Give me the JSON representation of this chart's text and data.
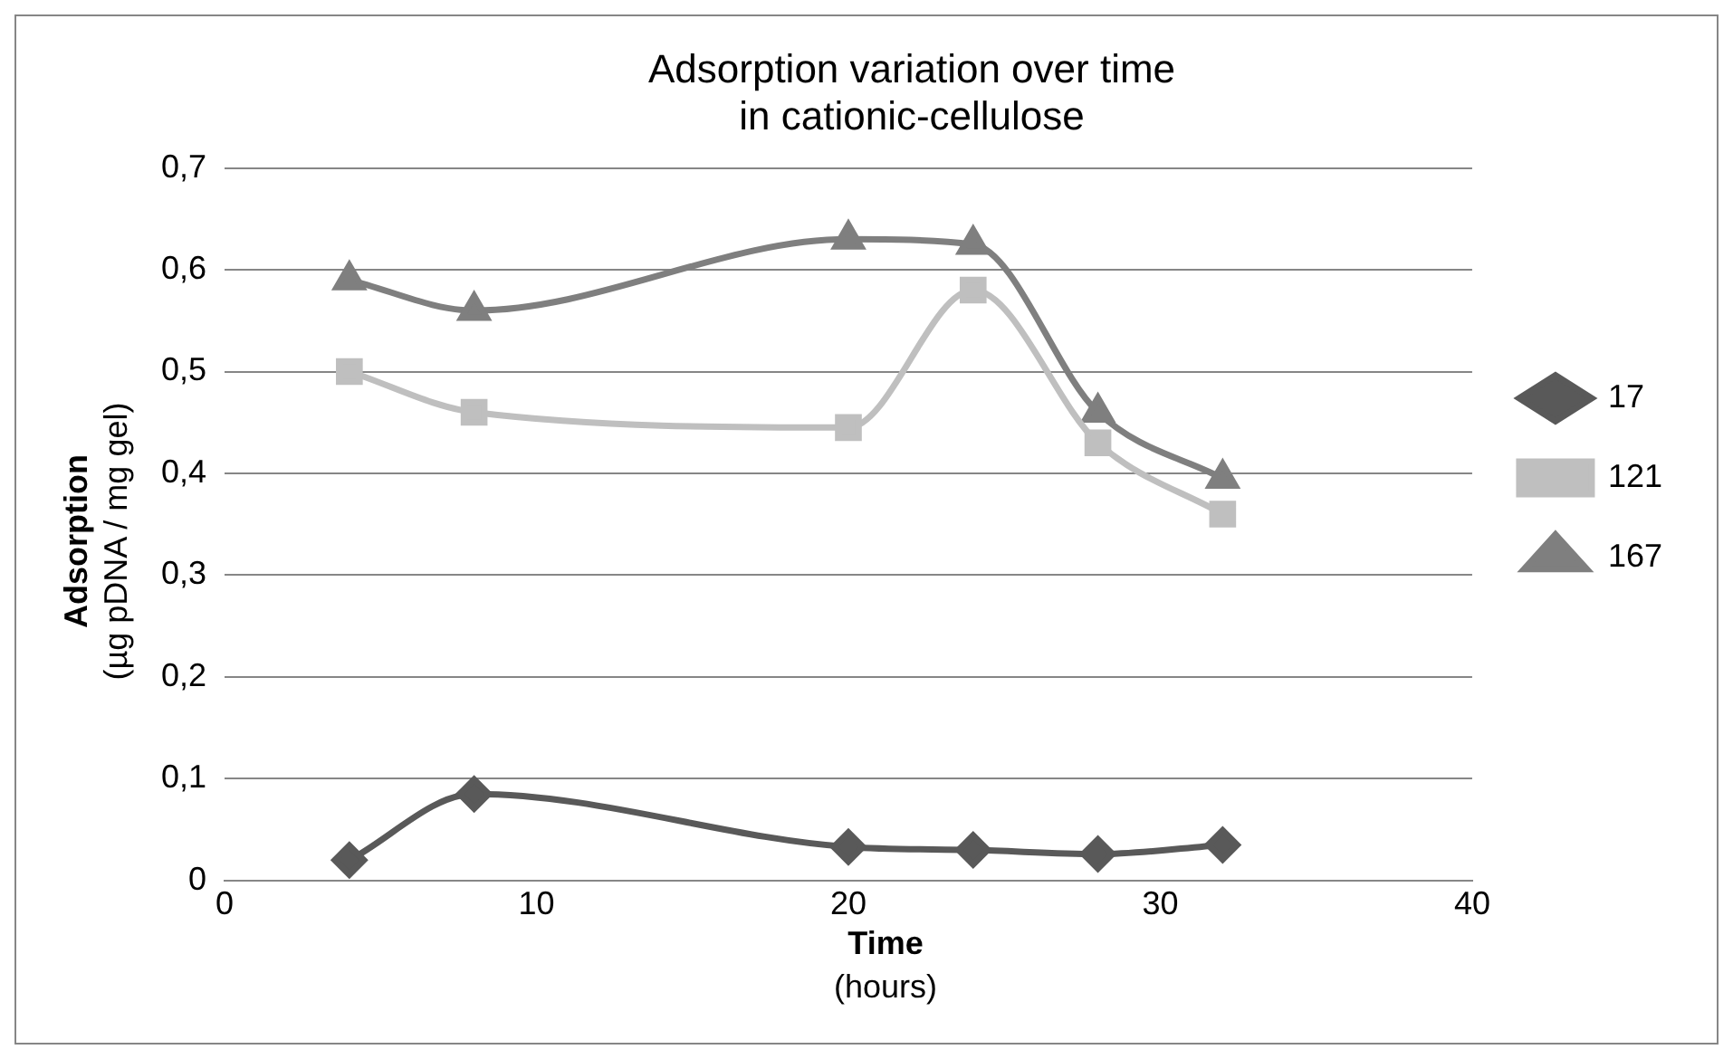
{
  "chart_data": {
    "type": "line",
    "title": "Adsorption variation over time\nin cationic-cellulose",
    "xlabel": "Time\n(hours)",
    "ylabel": "Adsorption\n(µg pDNA / mg gel)",
    "x": [
      4,
      8,
      20,
      24,
      28,
      32
    ],
    "series": [
      {
        "name": "17",
        "color": "#595959",
        "marker": "diamond",
        "values": [
          0.02,
          0.085,
          0.033,
          0.03,
          0.026,
          0.035
        ]
      },
      {
        "name": "121",
        "color": "#bfbfbf",
        "marker": "square",
        "values": [
          0.5,
          0.46,
          0.445,
          0.58,
          0.43,
          0.36
        ]
      },
      {
        "name": "167",
        "color": "#7f7f7f",
        "marker": "triangle",
        "values": [
          0.59,
          0.56,
          0.63,
          0.625,
          0.46,
          0.395
        ]
      }
    ],
    "xlim": [
      0,
      40
    ],
    "xticks": [
      0,
      10,
      20,
      30,
      40
    ],
    "ylim": [
      0,
      0.7
    ],
    "yticks": [
      0,
      {
        "value": 0.1,
        "label": "0,1"
      },
      {
        "value": 0.2,
        "label": "0,2"
      },
      {
        "value": 0.3,
        "label": "0,3"
      },
      {
        "value": 0.4,
        "label": "0,4"
      },
      {
        "value": 0.5,
        "label": "0,5"
      },
      {
        "value": 0.6,
        "label": "0,6"
      },
      {
        "value": 0.7,
        "label": "0,7"
      }
    ],
    "grid": "y",
    "legend": "right",
    "line_style": "solid"
  }
}
